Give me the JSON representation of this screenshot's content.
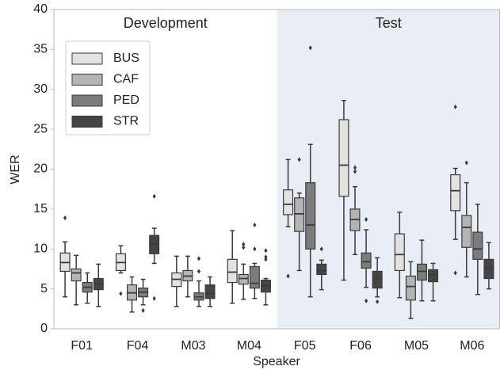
{
  "chart_data": {
    "type": "box",
    "xlabel": "Speaker",
    "ylabel": "WER",
    "categories": [
      "F01",
      "F04",
      "M03",
      "M04",
      "F05",
      "F06",
      "M05",
      "M06"
    ],
    "ylim": [
      0,
      40
    ],
    "yticks": [
      0,
      5,
      10,
      15,
      20,
      25,
      30,
      35,
      40
    ],
    "grid": false,
    "legend": "upper left",
    "regions": [
      {
        "label": "Development",
        "span": [
          0,
          3
        ],
        "color": "#ffffff"
      },
      {
        "label": "Test",
        "span": [
          4,
          7
        ],
        "color": "#e9edf6"
      }
    ],
    "series": [
      {
        "name": "BUS",
        "color": "#e2e2e2",
        "values": [
          {
            "whislo": 4,
            "q1": 7.2,
            "med": 8.3,
            "q3": 9.5,
            "whishi": 10.9,
            "fliers": [
              13.9
            ]
          },
          {
            "whislo": 7,
            "q1": 7.3,
            "med": 8.3,
            "q3": 9.4,
            "whishi": 10.4,
            "fliers": [
              4.4
            ]
          },
          {
            "whislo": 2.8,
            "q1": 5.3,
            "med": 6.2,
            "q3": 7,
            "whishi": 9.1,
            "fliers": []
          },
          {
            "whislo": 3.2,
            "q1": 5.8,
            "med": 7.1,
            "q3": 8.7,
            "whishi": 12.3,
            "fliers": []
          },
          {
            "whislo": 12.8,
            "q1": 14.3,
            "med": 15.6,
            "q3": 17.4,
            "whishi": 21.2,
            "fliers": [
              6.6
            ]
          },
          {
            "whislo": 6.1,
            "q1": 16.6,
            "med": 20.5,
            "q3": 26.2,
            "whishi": 28.6,
            "fliers": []
          },
          {
            "whislo": 3.9,
            "q1": 7.3,
            "med": 9.3,
            "q3": 11.9,
            "whishi": 14.6,
            "fliers": []
          },
          {
            "whislo": 11.2,
            "q1": 14.8,
            "med": 17.3,
            "q3": 19.3,
            "whishi": 20.1,
            "fliers": [
              27.8,
              7
            ]
          }
        ]
      },
      {
        "name": "CAF",
        "color": "#b4b4b4",
        "values": [
          {
            "whislo": 3,
            "q1": 6,
            "med": 7,
            "q3": 7.5,
            "whishi": 9.2,
            "fliers": []
          },
          {
            "whislo": 2.1,
            "q1": 3.6,
            "med": 4.5,
            "q3": 5.5,
            "whishi": 6.5,
            "fliers": []
          },
          {
            "whislo": 4,
            "q1": 6,
            "med": 6.6,
            "q3": 7.3,
            "whishi": 9.1,
            "fliers": []
          },
          {
            "whislo": 3.7,
            "q1": 5.6,
            "med": 6.3,
            "q3": 6.8,
            "whishi": 8.1,
            "fliers": [
              10.6,
              10.2
            ]
          },
          {
            "whislo": 7.3,
            "q1": 12.2,
            "med": 14.4,
            "q3": 16.4,
            "whishi": 17,
            "fliers": [
              21.2
            ]
          },
          {
            "whislo": 9.3,
            "q1": 12.3,
            "med": 13.7,
            "q3": 15,
            "whishi": 17.8,
            "fliers": [
              20.2,
              19.7
            ]
          },
          {
            "whislo": 1.3,
            "q1": 3.6,
            "med": 5.3,
            "q3": 6.6,
            "whishi": 8.4,
            "fliers": []
          },
          {
            "whislo": 6.5,
            "q1": 10.2,
            "med": 12.7,
            "q3": 14.2,
            "whishi": 18.3,
            "fliers": [
              20.8
            ]
          }
        ]
      },
      {
        "name": "PED",
        "color": "#7c7c7c",
        "values": [
          {
            "whislo": 3.2,
            "q1": 4.6,
            "med": 5.2,
            "q3": 5.8,
            "whishi": 7,
            "fliers": []
          },
          {
            "whislo": 3,
            "q1": 4,
            "med": 4.6,
            "q3": 5.1,
            "whishi": 6.2,
            "fliers": [
              2.3
            ]
          },
          {
            "whislo": 2.8,
            "q1": 3.6,
            "med": 4,
            "q3": 4.5,
            "whishi": 6,
            "fliers": [
              8.8,
              7.2
            ]
          },
          {
            "whislo": 3.8,
            "q1": 5.1,
            "med": 5.7,
            "q3": 7.8,
            "whishi": 8.2,
            "fliers": [
              13,
              10
            ]
          },
          {
            "whislo": 4,
            "q1": 10,
            "med": 13,
            "q3": 18.3,
            "whishi": 23.1,
            "fliers": [
              35.2
            ]
          },
          {
            "whislo": 5.2,
            "q1": 7.6,
            "med": 8.4,
            "q3": 9.5,
            "whishi": 12.4,
            "fliers": [
              13.7,
              3.5
            ]
          },
          {
            "whislo": 3.5,
            "q1": 6.1,
            "med": 7.2,
            "q3": 8.1,
            "whishi": 11.1,
            "fliers": []
          },
          {
            "whislo": 4.3,
            "q1": 8.7,
            "med": 10,
            "q3": 12.1,
            "whishi": 15.6,
            "fliers": []
          }
        ]
      },
      {
        "name": "STR",
        "color": "#454545",
        "values": [
          {
            "whislo": 2.8,
            "q1": 4.9,
            "med": 5.6,
            "q3": 6.3,
            "whishi": 8.1,
            "fliers": []
          },
          {
            "whislo": 8.2,
            "q1": 9.4,
            "med": 10.6,
            "q3": 11.7,
            "whishi": 12.6,
            "fliers": [
              16.6,
              3.8
            ]
          },
          {
            "whislo": 2.8,
            "q1": 3.8,
            "med": 4.4,
            "q3": 5.5,
            "whishi": 6.5,
            "fliers": []
          },
          {
            "whislo": 3,
            "q1": 4.6,
            "med": 5.4,
            "q3": 6.1,
            "whishi": 6.3,
            "fliers": [
              9.8,
              8.7,
              9
            ]
          },
          {
            "whislo": 4.9,
            "q1": 6.8,
            "med": 7.3,
            "q3": 8.1,
            "whishi": 8.6,
            "fliers": [
              10
            ]
          },
          {
            "whislo": 4,
            "q1": 5.1,
            "med": 6.3,
            "q3": 7.2,
            "whishi": 8.9,
            "fliers": [
              3.4
            ]
          },
          {
            "whislo": 3.5,
            "q1": 5.9,
            "med": 6.8,
            "q3": 7.4,
            "whishi": 8.2,
            "fliers": []
          },
          {
            "whislo": 5,
            "q1": 6.3,
            "med": 7.7,
            "q3": 8.7,
            "whishi": 10.8,
            "fliers": []
          }
        ]
      }
    ]
  }
}
